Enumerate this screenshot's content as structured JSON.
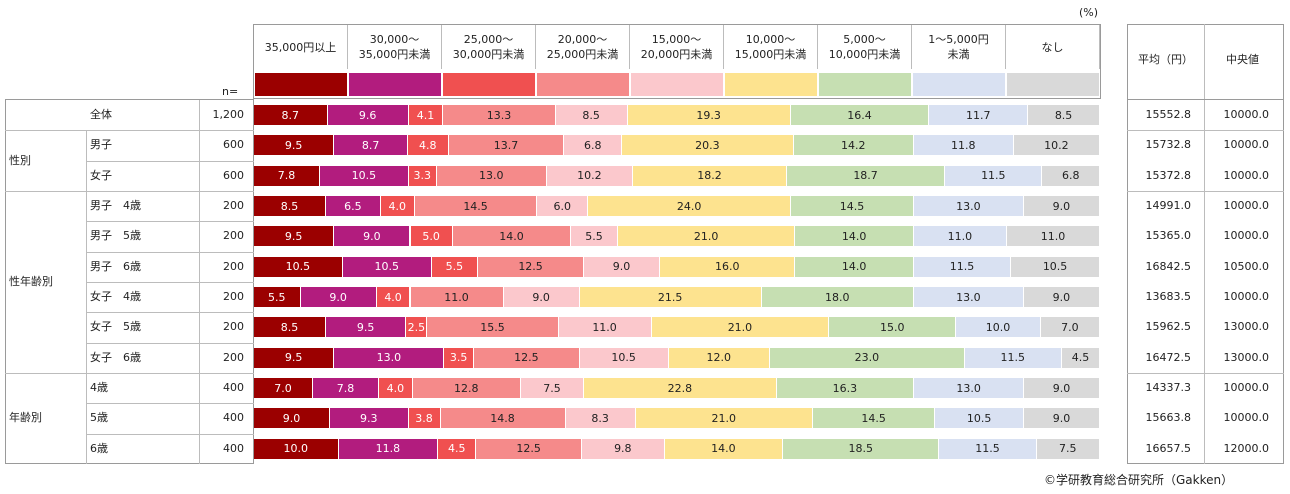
{
  "unit_label": "(%)",
  "n_label": "n=",
  "stats_headers": {
    "mean": "平均（円）",
    "median": "中央値"
  },
  "copyright": "©学研教育総合研究所（Gakken）",
  "chart_data": {
    "type": "stacked-bar-100",
    "unit": "%",
    "categories": [
      "35,000円以上",
      "30,000～\n35,000円未満",
      "25,000～\n30,000円未満",
      "20,000～\n25,000円未満",
      "15,000～\n20,000円未満",
      "10,000～\n15,000円未満",
      "5,000～\n10,000円未満",
      "1～5,000円\n未満",
      "なし"
    ],
    "colors": [
      "#9b0000",
      "#b21c7e",
      "#f05050",
      "#f58a8a",
      "#fbc8cc",
      "#fde38f",
      "#c6dfb2",
      "#d9e1f2",
      "#d9d9d9"
    ],
    "label_colors": [
      "#ffffff",
      "#ffffff",
      "#ffffff",
      "#222222",
      "#222222",
      "#222222",
      "#222222",
      "#222222",
      "#222222"
    ],
    "groups": [
      {
        "name": "",
        "rows": [
          0
        ]
      },
      {
        "name": "性別",
        "rows": [
          1,
          2
        ]
      },
      {
        "name": "性年齢別",
        "rows": [
          3,
          4,
          5,
          6,
          7,
          8
        ]
      },
      {
        "name": "年齢別",
        "rows": [
          9,
          10,
          11
        ]
      }
    ],
    "rows": [
      {
        "label": "全体",
        "n": "1,200",
        "values": [
          8.7,
          9.6,
          4.1,
          13.3,
          8.5,
          19.3,
          16.4,
          11.7,
          8.5
        ],
        "mean": "15552.8",
        "median": "10000.0"
      },
      {
        "label": "男子",
        "n": "600",
        "values": [
          9.5,
          8.7,
          4.8,
          13.7,
          6.8,
          20.3,
          14.2,
          11.8,
          10.2
        ],
        "mean": "15732.8",
        "median": "10000.0"
      },
      {
        "label": "女子",
        "n": "600",
        "values": [
          7.8,
          10.5,
          3.3,
          13.0,
          10.2,
          18.2,
          18.7,
          11.5,
          6.8
        ],
        "mean": "15372.8",
        "median": "10000.0"
      },
      {
        "label": "男子　4歳",
        "n": "200",
        "values": [
          8.5,
          6.5,
          4.0,
          14.5,
          6.0,
          24.0,
          14.5,
          13.0,
          9.0
        ],
        "mean": "14991.0",
        "median": "10000.0"
      },
      {
        "label": "男子　5歳",
        "n": "200",
        "values": [
          9.5,
          9.0,
          5.0,
          14.0,
          5.5,
          21.0,
          14.0,
          11.0,
          11.0
        ],
        "mean": "15365.0",
        "median": "10000.0"
      },
      {
        "label": "男子　6歳",
        "n": "200",
        "values": [
          10.5,
          10.5,
          5.5,
          12.5,
          9.0,
          16.0,
          14.0,
          11.5,
          10.5
        ],
        "mean": "16842.5",
        "median": "10500.0"
      },
      {
        "label": "女子　4歳",
        "n": "200",
        "values": [
          5.5,
          9.0,
          4.0,
          11.0,
          9.0,
          21.5,
          18.0,
          13.0,
          9.0
        ],
        "mean": "13683.5",
        "median": "10000.0"
      },
      {
        "label": "女子　5歳",
        "n": "200",
        "values": [
          8.5,
          9.5,
          2.5,
          15.5,
          11.0,
          21.0,
          15.0,
          10.0,
          7.0
        ],
        "mean": "15962.5",
        "median": "13000.0"
      },
      {
        "label": "女子　6歳",
        "n": "200",
        "values": [
          9.5,
          13.0,
          3.5,
          12.5,
          10.5,
          12.0,
          23.0,
          11.5,
          4.5
        ],
        "mean": "16472.5",
        "median": "13000.0"
      },
      {
        "label": "4歳",
        "n": "400",
        "values": [
          7.0,
          7.8,
          4.0,
          12.8,
          7.5,
          22.8,
          16.3,
          13.0,
          9.0
        ],
        "mean": "14337.3",
        "median": "10000.0"
      },
      {
        "label": "5歳",
        "n": "400",
        "values": [
          9.0,
          9.3,
          3.8,
          14.8,
          8.3,
          21.0,
          14.5,
          10.5,
          9.0
        ],
        "mean": "15663.8",
        "median": "10000.0"
      },
      {
        "label": "6歳",
        "n": "400",
        "values": [
          10.0,
          11.8,
          4.5,
          12.5,
          9.8,
          14.0,
          18.5,
          11.5,
          7.5
        ],
        "mean": "16657.5",
        "median": "12000.0"
      }
    ]
  }
}
